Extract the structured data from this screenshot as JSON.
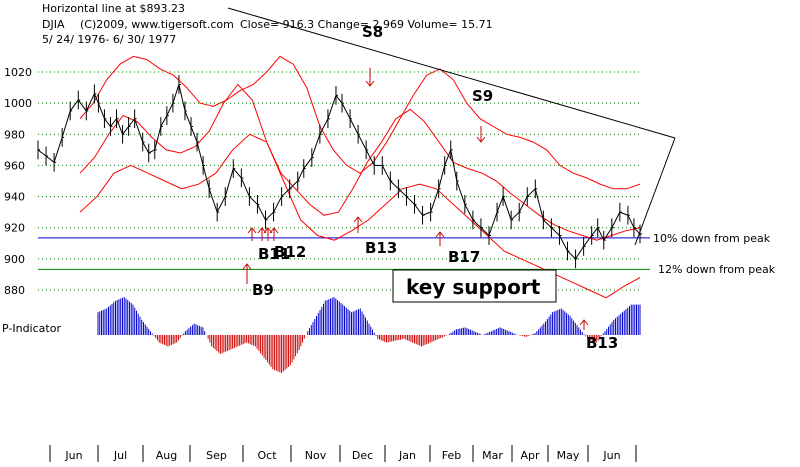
{
  "header": {
    "line1": "Horizontal line at $893.23",
    "symbol": "DJIA",
    "copyright": "(C)2009, www.tigersoft.com",
    "close": "Close=  916.3  Change= 2.969 Volume= 15.71",
    "range": "5/ 24/ 1976- 6/ 30/ 1977"
  },
  "chart_data": {
    "type": "line",
    "title": "DJIA",
    "y_ticks": [
      "1020",
      "1000",
      "980",
      "960",
      "940",
      "920",
      "900",
      "880"
    ],
    "ylim": [
      865,
      1040
    ],
    "months": [
      "Jun",
      "Jul",
      "Aug",
      "Sep",
      "Oct",
      "Nov",
      "Dec",
      "Jan",
      "Feb",
      "Mar",
      "Apr",
      "May",
      "Jun"
    ],
    "price_x": [
      0,
      8,
      16,
      24,
      32,
      40,
      48,
      56,
      60,
      66,
      72,
      78,
      84,
      90,
      96,
      104,
      110,
      116,
      122,
      128,
      134,
      140,
      146,
      152,
      158,
      164,
      170,
      178,
      186,
      194,
      202,
      210,
      218,
      226,
      234,
      242,
      250,
      258,
      264,
      272,
      280,
      288,
      296,
      302,
      310,
      318,
      326,
      334,
      342,
      350,
      358,
      366,
      374,
      382,
      390,
      398,
      404,
      410,
      416,
      424,
      432,
      440,
      448,
      456,
      462,
      470,
      478,
      486,
      494,
      502,
      510,
      518,
      526,
      534,
      542,
      550,
      556,
      562,
      570,
      578,
      586,
      592,
      598
    ],
    "price": [
      970,
      966,
      962,
      978,
      995,
      1002,
      995,
      1006,
      1000,
      990,
      985,
      990,
      980,
      985,
      990,
      975,
      968,
      970,
      985,
      992,
      1000,
      1012,
      995,
      985,
      975,
      960,
      945,
      930,
      940,
      958,
      952,
      940,
      935,
      925,
      930,
      940,
      945,
      950,
      958,
      965,
      980,
      990,
      1005,
      1000,
      990,
      980,
      970,
      960,
      960,
      950,
      945,
      940,
      935,
      928,
      930,
      945,
      960,
      970,
      950,
      935,
      925,
      920,
      915,
      930,
      940,
      925,
      930,
      940,
      945,
      925,
      920,
      915,
      905,
      900,
      908,
      915,
      920,
      912,
      920,
      930,
      928,
      920,
      916
    ],
    "upper_band": [
      990,
      1000,
      1015,
      1025,
      1030,
      1028,
      1022,
      1018,
      1010,
      1000,
      998,
      1002,
      1008,
      1012,
      1020,
      1030,
      1025,
      1010,
      985,
      970,
      960,
      955,
      962,
      975,
      990,
      1005,
      1018,
      1022,
      1015,
      1000,
      990,
      985,
      980,
      978,
      975,
      970,
      960,
      955,
      952,
      948,
      945,
      945,
      948
    ],
    "mid_band": [
      955,
      965,
      980,
      992,
      988,
      978,
      970,
      968,
      972,
      982,
      1000,
      1012,
      1002,
      975,
      955,
      945,
      935,
      928,
      930,
      945,
      962,
      975,
      990,
      996,
      988,
      975,
      962,
      958,
      955,
      950,
      942,
      935,
      928,
      922,
      918,
      915,
      912,
      915,
      918,
      920
    ],
    "lower_band": [
      930,
      940,
      955,
      960,
      955,
      950,
      945,
      948,
      955,
      970,
      980,
      975,
      950,
      925,
      915,
      912,
      918,
      925,
      935,
      945,
      948,
      945,
      935,
      925,
      915,
      905,
      900,
      895,
      890,
      885,
      880,
      875,
      882,
      888
    ],
    "p_indicator": [
      0.6,
      0.7,
      0.9,
      1.0,
      0.8,
      0.4,
      0.1,
      -0.2,
      -0.3,
      -0.2,
      0.1,
      0.3,
      0.2,
      -0.3,
      -0.5,
      -0.4,
      -0.3,
      -0.2,
      -0.3,
      -0.6,
      -0.9,
      -1.0,
      -0.8,
      -0.4,
      0.1,
      0.5,
      0.9,
      1.0,
      0.8,
      0.6,
      0.7,
      0.3,
      -0.1,
      -0.2,
      -0.15,
      -0.1,
      -0.2,
      -0.3,
      -0.2,
      -0.1,
      0.0,
      0.15,
      0.2,
      0.1,
      0.0,
      0.1,
      0.2,
      0.1,
      0.0,
      -0.05,
      0.05,
      0.3,
      0.6,
      0.7,
      0.5,
      0.2,
      -0.1,
      -0.2,
      0.1,
      0.4,
      0.6,
      0.8,
      0.8
    ],
    "support_lines": [
      {
        "value": 913.5,
        "color": "#0000cc"
      },
      {
        "value": 893.23,
        "color": "#008000"
      }
    ],
    "dotted_grid_color": "#008000",
    "trendline_color": "#000000"
  },
  "annotations": {
    "s8": "S8",
    "s9": "S9",
    "b9": "B9",
    "b13": "B13",
    "b17": "B17",
    "b_cluster": "B11",
    "b_cluster2": "B12",
    "b_cluster_may": "B13",
    "ten_down": "10% down from peak",
    "twelve_down": "12% down from peak",
    "key_support": "key support",
    "p_indicator_label": "P-Indicator"
  },
  "colors": {
    "price": "#000000",
    "bands": "#ff0000",
    "blue": "#0000cc",
    "green": "#008000",
    "p_pos": "#0000cc",
    "p_neg": "#cc0000"
  }
}
